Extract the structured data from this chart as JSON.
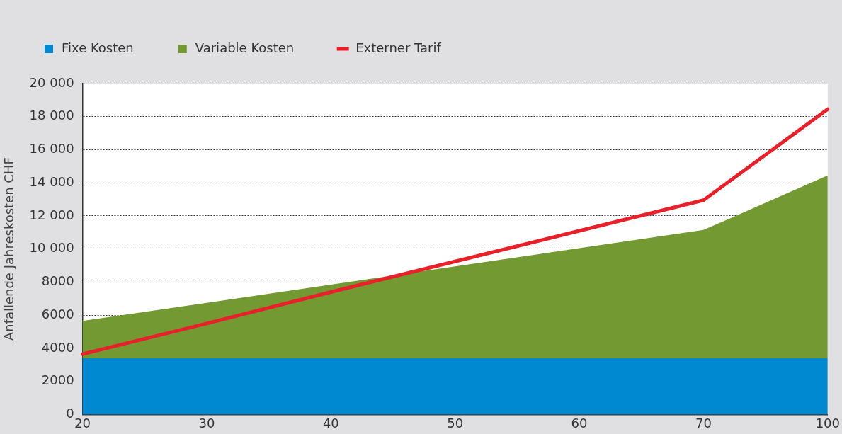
{
  "chart_data": {
    "type": "area",
    "ylabel": "Anfallende Jahreskosten CHF",
    "categories": [
      "20",
      "30",
      "40",
      "50",
      "60",
      "70",
      "100"
    ],
    "series": [
      {
        "name": "Fixe Kosten",
        "type": "area",
        "color": "#0088d0",
        "values": [
          3400,
          3400,
          3400,
          3400,
          3400,
          3400,
          3400
        ]
      },
      {
        "name": "Variable Kosten",
        "type": "area",
        "color": "#739a32",
        "values": [
          2250,
          3350,
          4450,
          5550,
          6650,
          7750,
          11050
        ]
      },
      {
        "name": "Externer Tarif",
        "type": "line",
        "color": "#e8202a",
        "values": [
          3650,
          5500,
          7400,
          9250,
          11100,
          12950,
          18450
        ]
      }
    ],
    "stacked": true,
    "ylim": [
      0,
      20000
    ],
    "yticks": [
      0,
      2000,
      4000,
      6000,
      8000,
      {
        "value": 10000,
        "label": "10 000"
      },
      {
        "value": 12000,
        "label": "12 000"
      },
      {
        "value": 14000,
        "label": "14 000"
      },
      {
        "value": 16000,
        "label": "16 000"
      },
      {
        "value": 18000,
        "label": "18 000"
      },
      {
        "value": 20000,
        "label": "20 000"
      }
    ],
    "grid": "y",
    "legend": "top"
  }
}
